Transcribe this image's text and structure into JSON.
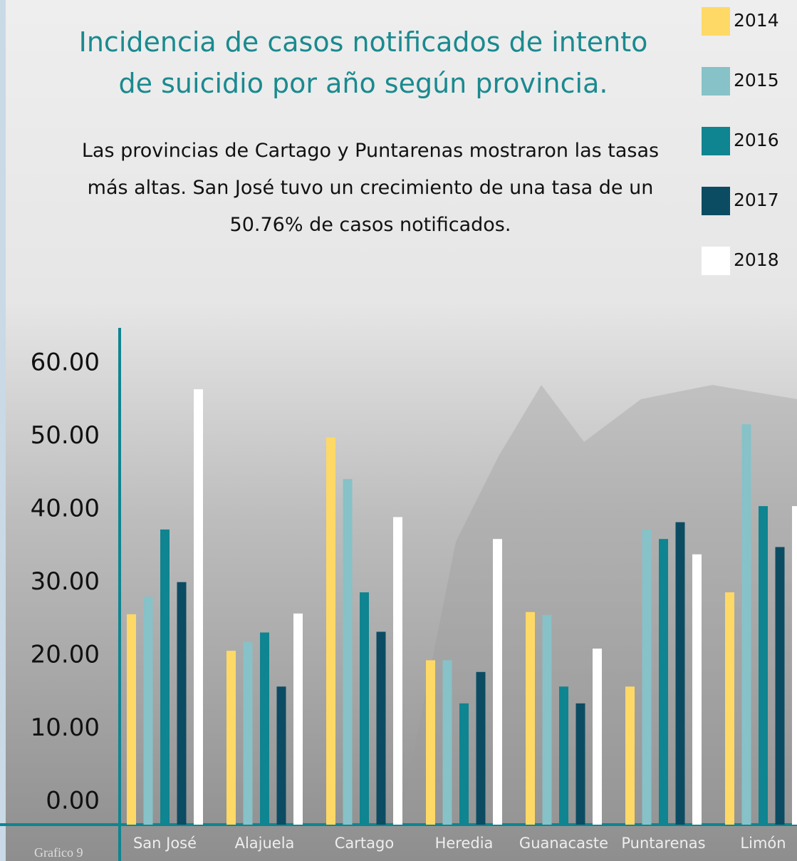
{
  "chart_data": {
    "type": "bar",
    "title": "Incidencia de casos notificados de intento de suicidio por año según provincia.",
    "subtitle": "Las provincias de Cartago y Puntarenas mostraron las tasas más altas. San José tuvo un crecimiento de una tasa de un 50.76% de casos notificados.",
    "caption": "Grafico 9",
    "categories": [
      "San José",
      "Alajuela",
      "Cartago",
      "Heredia",
      "Guanacaste",
      "Puntarenas",
      "Limón"
    ],
    "series": [
      {
        "name": "2014",
        "color": "#ffd966",
        "values": [
          28.8,
          23.8,
          53.0,
          22.5,
          29.1,
          18.9,
          31.8
        ]
      },
      {
        "name": "2015",
        "color": "#86c2c8",
        "values": [
          31.2,
          25.0,
          47.3,
          22.5,
          28.7,
          40.4,
          54.8
        ]
      },
      {
        "name": "2016",
        "color": "#0e8590",
        "values": [
          40.4,
          26.3,
          31.8,
          16.6,
          18.9,
          39.1,
          43.6
        ]
      },
      {
        "name": "2017",
        "color": "#0b4c63",
        "values": [
          33.2,
          18.9,
          26.4,
          20.9,
          16.6,
          41.4,
          38.0
        ]
      },
      {
        "name": "2018",
        "color": "#ffffff",
        "values": [
          59.6,
          28.9,
          42.1,
          39.1,
          24.1,
          37.0,
          43.6
        ]
      }
    ],
    "ylim": [
      0,
      68
    ],
    "yticks": [
      {
        "value": 0,
        "label": "0.00"
      },
      {
        "value": 10,
        "label": "10.00"
      },
      {
        "value": 20,
        "label": "20.00"
      },
      {
        "value": 30,
        "label": "30.00"
      },
      {
        "value": 40,
        "label": "40.00"
      },
      {
        "value": 50,
        "label": "50.00"
      },
      {
        "value": 60,
        "label": "60.00"
      }
    ],
    "grid": false,
    "legend": "top-right"
  }
}
